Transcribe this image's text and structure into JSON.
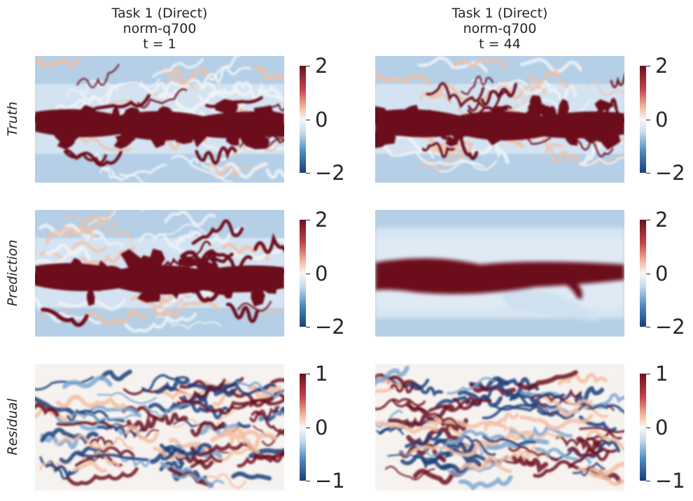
{
  "chart_data": {
    "type": "heatmap",
    "columns": [
      {
        "title_lines": [
          "Task 1 (Direct)",
          "norm-q700",
          "t = 1"
        ]
      },
      {
        "title_lines": [
          "Task 1 (Direct)",
          "norm-q700",
          "t = 44"
        ]
      }
    ],
    "rows": [
      {
        "label": "Truth",
        "colorbar": {
          "min": -2,
          "max": 2,
          "ticks": [
            "2",
            "0",
            "−2"
          ]
        }
      },
      {
        "label": "Prediction",
        "colorbar": {
          "min": -2,
          "max": 2,
          "ticks": [
            "2",
            "0",
            "−2"
          ]
        }
      },
      {
        "label": "Residual",
        "colorbar": {
          "min": -1,
          "max": 1,
          "ticks": [
            "1",
            "0",
            "−1"
          ]
        }
      }
    ],
    "colormap": "RdBu_r",
    "colors": {
      "dark_blue": "#1a3f7a",
      "light_blue": "#c7ddef",
      "white": "#f7f7f7",
      "light_red": "#f4c0a4",
      "dark_red": "#6c0f1e"
    }
  }
}
